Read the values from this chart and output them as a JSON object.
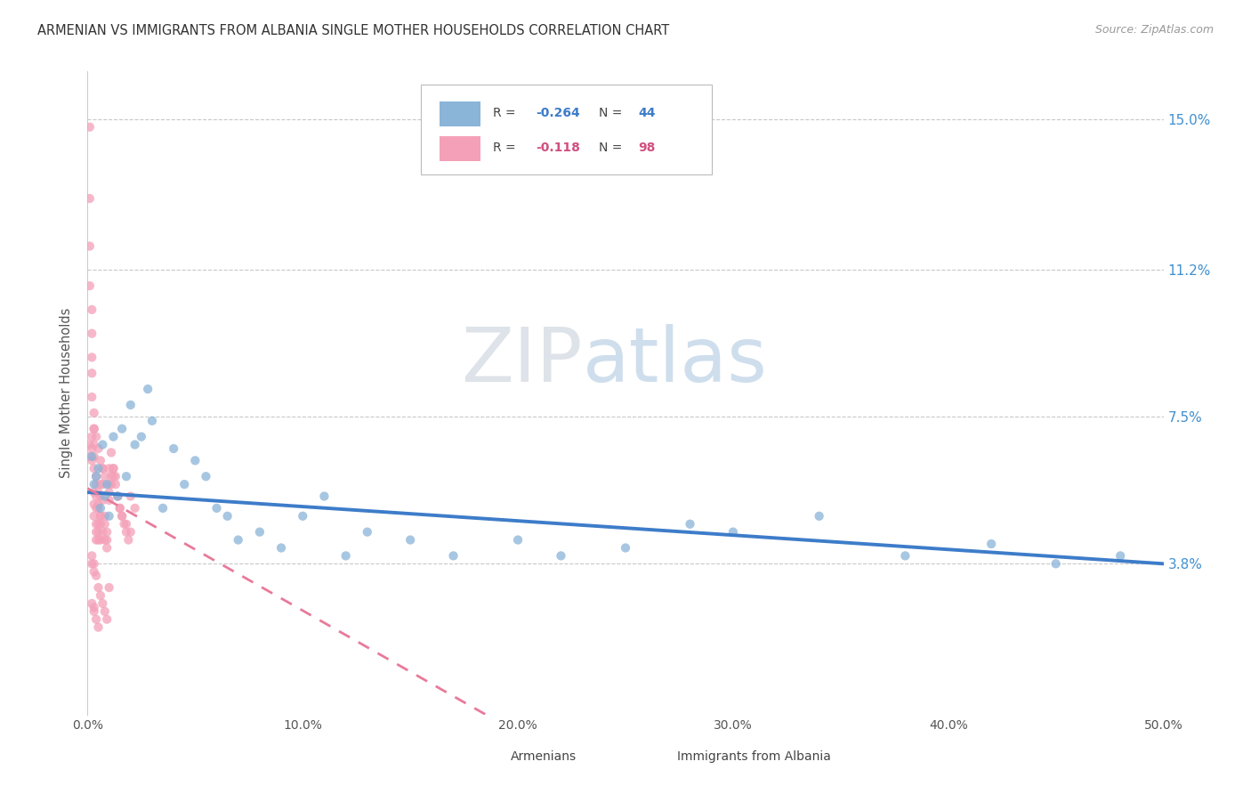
{
  "title": "ARMENIAN VS IMMIGRANTS FROM ALBANIA SINGLE MOTHER HOUSEHOLDS CORRELATION CHART",
  "source": "Source: ZipAtlas.com",
  "ylabel": "Single Mother Households",
  "y_ticks": [
    0.038,
    0.075,
    0.112,
    0.15
  ],
  "y_tick_labels": [
    "3.8%",
    "7.5%",
    "11.2%",
    "15.0%"
  ],
  "x_min": 0.0,
  "x_max": 0.5,
  "y_min": 0.0,
  "y_max": 0.162,
  "blue_color": "#8ab4d8",
  "pink_color": "#f4a0b8",
  "blue_line_color": "#3d7cc9",
  "pink_line_color": "#e87a9a",
  "watermark_zip": "ZIP",
  "watermark_atlas": "atlas",
  "armenians_x": [
    0.002,
    0.003,
    0.004,
    0.005,
    0.006,
    0.007,
    0.008,
    0.009,
    0.01,
    0.012,
    0.014,
    0.016,
    0.018,
    0.02,
    0.022,
    0.025,
    0.028,
    0.03,
    0.035,
    0.04,
    0.045,
    0.05,
    0.055,
    0.06,
    0.065,
    0.07,
    0.08,
    0.09,
    0.1,
    0.11,
    0.12,
    0.13,
    0.15,
    0.17,
    0.2,
    0.22,
    0.25,
    0.28,
    0.3,
    0.34,
    0.38,
    0.42,
    0.45,
    0.48
  ],
  "armenians_y": [
    0.065,
    0.058,
    0.06,
    0.062,
    0.052,
    0.068,
    0.055,
    0.058,
    0.05,
    0.07,
    0.055,
    0.072,
    0.06,
    0.078,
    0.068,
    0.07,
    0.082,
    0.074,
    0.052,
    0.067,
    0.058,
    0.064,
    0.06,
    0.052,
    0.05,
    0.044,
    0.046,
    0.042,
    0.05,
    0.055,
    0.04,
    0.046,
    0.044,
    0.04,
    0.044,
    0.04,
    0.042,
    0.048,
    0.046,
    0.05,
    0.04,
    0.043,
    0.038,
    0.04
  ],
  "albania_x": [
    0.001,
    0.001,
    0.001,
    0.001,
    0.002,
    0.002,
    0.002,
    0.002,
    0.002,
    0.003,
    0.003,
    0.003,
    0.003,
    0.003,
    0.004,
    0.004,
    0.004,
    0.004,
    0.005,
    0.005,
    0.005,
    0.005,
    0.006,
    0.006,
    0.006,
    0.006,
    0.007,
    0.007,
    0.007,
    0.008,
    0.008,
    0.009,
    0.009,
    0.01,
    0.01,
    0.011,
    0.011,
    0.012,
    0.012,
    0.013,
    0.014,
    0.015,
    0.016,
    0.017,
    0.018,
    0.019,
    0.02,
    0.022,
    0.001,
    0.001,
    0.002,
    0.002,
    0.002,
    0.003,
    0.003,
    0.003,
    0.004,
    0.004,
    0.004,
    0.005,
    0.005,
    0.006,
    0.006,
    0.007,
    0.008,
    0.009,
    0.01,
    0.011,
    0.012,
    0.013,
    0.014,
    0.015,
    0.016,
    0.018,
    0.02,
    0.003,
    0.004,
    0.005,
    0.006,
    0.007,
    0.008,
    0.01,
    0.002,
    0.003,
    0.004,
    0.005,
    0.006,
    0.007,
    0.008,
    0.009,
    0.01,
    0.003,
    0.004,
    0.005,
    0.002,
    0.003,
    0.002,
    0.003
  ],
  "albania_y": [
    0.148,
    0.13,
    0.118,
    0.108,
    0.102,
    0.096,
    0.09,
    0.086,
    0.08,
    0.076,
    0.072,
    0.068,
    0.065,
    0.062,
    0.06,
    0.058,
    0.055,
    0.052,
    0.052,
    0.048,
    0.046,
    0.044,
    0.058,
    0.055,
    0.05,
    0.044,
    0.062,
    0.058,
    0.054,
    0.05,
    0.048,
    0.046,
    0.044,
    0.058,
    0.054,
    0.06,
    0.066,
    0.062,
    0.06,
    0.058,
    0.055,
    0.052,
    0.05,
    0.048,
    0.046,
    0.044,
    0.055,
    0.052,
    0.068,
    0.065,
    0.07,
    0.067,
    0.064,
    0.056,
    0.053,
    0.05,
    0.048,
    0.046,
    0.044,
    0.056,
    0.053,
    0.05,
    0.048,
    0.046,
    0.044,
    0.042,
    0.062,
    0.058,
    0.062,
    0.06,
    0.055,
    0.052,
    0.05,
    0.048,
    0.046,
    0.072,
    0.07,
    0.067,
    0.064,
    0.062,
    0.06,
    0.056,
    0.04,
    0.038,
    0.035,
    0.032,
    0.03,
    0.028,
    0.026,
    0.024,
    0.032,
    0.027,
    0.024,
    0.022,
    0.038,
    0.036,
    0.028,
    0.026
  ]
}
